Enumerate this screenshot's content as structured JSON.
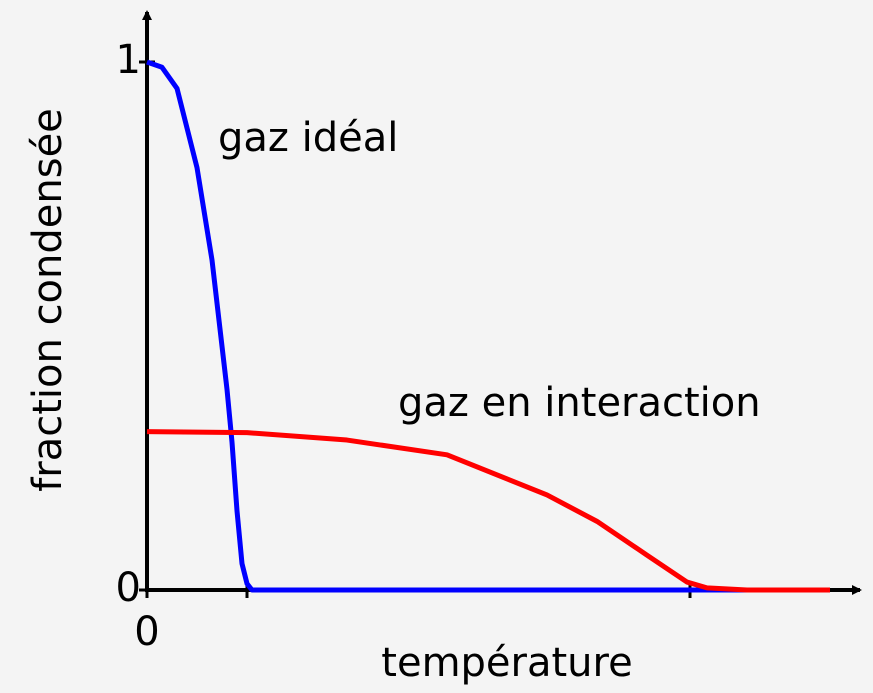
{
  "chart_data": {
    "type": "line",
    "xlabel": "température",
    "ylabel": "fraction condensée",
    "xlim": [
      0,
      7
    ],
    "ylim": [
      0,
      1
    ],
    "xticks": [
      0
    ],
    "yticks": [
      0,
      1
    ],
    "series": [
      {
        "name": "gaz idéal",
        "color": "#0000ff",
        "x": [
          0,
          0.15,
          0.3,
          0.5,
          0.65,
          0.8,
          0.85,
          0.9,
          0.95,
          1.0,
          1.05,
          1.1,
          6.83
        ],
        "values": [
          1,
          0.99,
          0.95,
          0.8,
          0.625,
          0.38,
          0.28,
          0.15,
          0.05,
          0.012,
          0,
          0,
          0
        ]
      },
      {
        "name": "gaz en interaction",
        "color": "#ff0000",
        "x": [
          0,
          1,
          2,
          3,
          4,
          4.5,
          5,
          5.4,
          5.6,
          6.0,
          6.83
        ],
        "values": [
          0.3,
          0.298,
          0.284,
          0.256,
          0.18,
          0.13,
          0.066,
          0.015,
          0.004,
          0,
          0
        ]
      }
    ]
  }
}
